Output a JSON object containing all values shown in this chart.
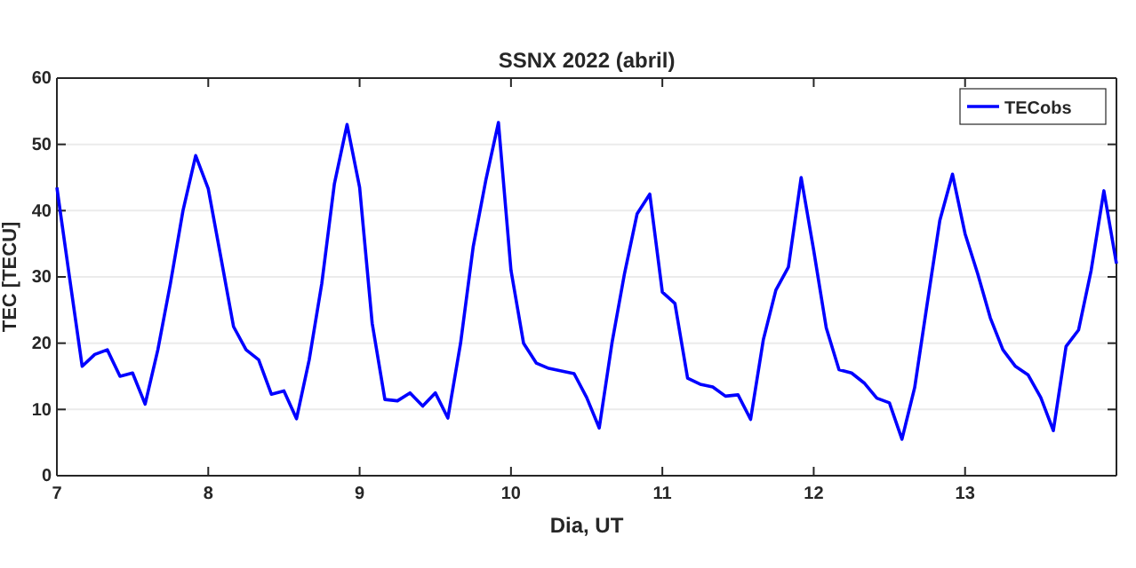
{
  "chart_data": {
    "type": "line",
    "title": "SSNX 2022 (abril)",
    "xlabel": "Dia, UT",
    "ylabel": "TEC [TECU]",
    "x": [
      7,
      7.083,
      7.167,
      7.25,
      7.333,
      7.417,
      7.5,
      7.583,
      7.667,
      7.75,
      7.833,
      7.917,
      8,
      8.083,
      8.167,
      8.25,
      8.333,
      8.417,
      8.5,
      8.583,
      8.667,
      8.75,
      8.833,
      8.917,
      9,
      9.083,
      9.167,
      9.25,
      9.333,
      9.417,
      9.5,
      9.583,
      9.667,
      9.75,
      9.833,
      9.917,
      10,
      10.083,
      10.167,
      10.25,
      10.333,
      10.417,
      10.5,
      10.583,
      10.667,
      10.75,
      10.833,
      10.917,
      11,
      11.083,
      11.167,
      11.25,
      11.333,
      11.417,
      11.5,
      11.583,
      11.667,
      11.75,
      11.833,
      11.917,
      12,
      12.083,
      12.167,
      12.25,
      12.333,
      12.417,
      12.5,
      12.583,
      12.667,
      12.75,
      12.833,
      12.917,
      13,
      13.083,
      13.167,
      13.25,
      13.333,
      13.417,
      13.5,
      13.583,
      13.667,
      13.75,
      13.833,
      13.917,
      14
    ],
    "series": [
      {
        "name": "TECobs",
        "color": "#0000ff",
        "values": [
          43.5,
          30,
          16.5,
          18.3,
          19,
          15,
          15.5,
          10.8,
          19,
          29,
          40,
          48.3,
          43.3,
          33,
          22.5,
          19,
          17.5,
          12.3,
          12.8,
          8.6,
          17.5,
          29,
          44,
          53,
          43.5,
          23,
          11.5,
          11.3,
          12.5,
          10.5,
          12.5,
          8.7,
          20,
          34.5,
          44.5,
          53.3,
          31,
          20,
          17,
          16.2,
          15.8,
          15.4,
          11.8,
          7.2,
          20,
          30.5,
          39.5,
          42.5,
          27.7,
          26,
          14.7,
          13.8,
          13.4,
          12,
          12.2,
          8.5,
          20.5,
          28,
          31.5,
          45,
          34,
          22.3,
          16,
          15.5,
          14,
          11.7,
          11,
          5.5,
          13.3,
          26,
          38.5,
          45.5,
          36.5,
          30.5,
          23.8,
          19,
          16.5,
          15.2,
          11.8,
          6.8,
          19.5,
          22,
          31,
          43,
          32
        ]
      }
    ],
    "xlim": [
      7,
      14
    ],
    "xticks": [
      7,
      8,
      9,
      10,
      11,
      12,
      13
    ],
    "ylim": [
      0,
      60
    ],
    "yticks": [
      0,
      10,
      20,
      30,
      40,
      50,
      60
    ],
    "grid": "y",
    "legend": "top right",
    "marker": "none",
    "line_style": "solid"
  }
}
